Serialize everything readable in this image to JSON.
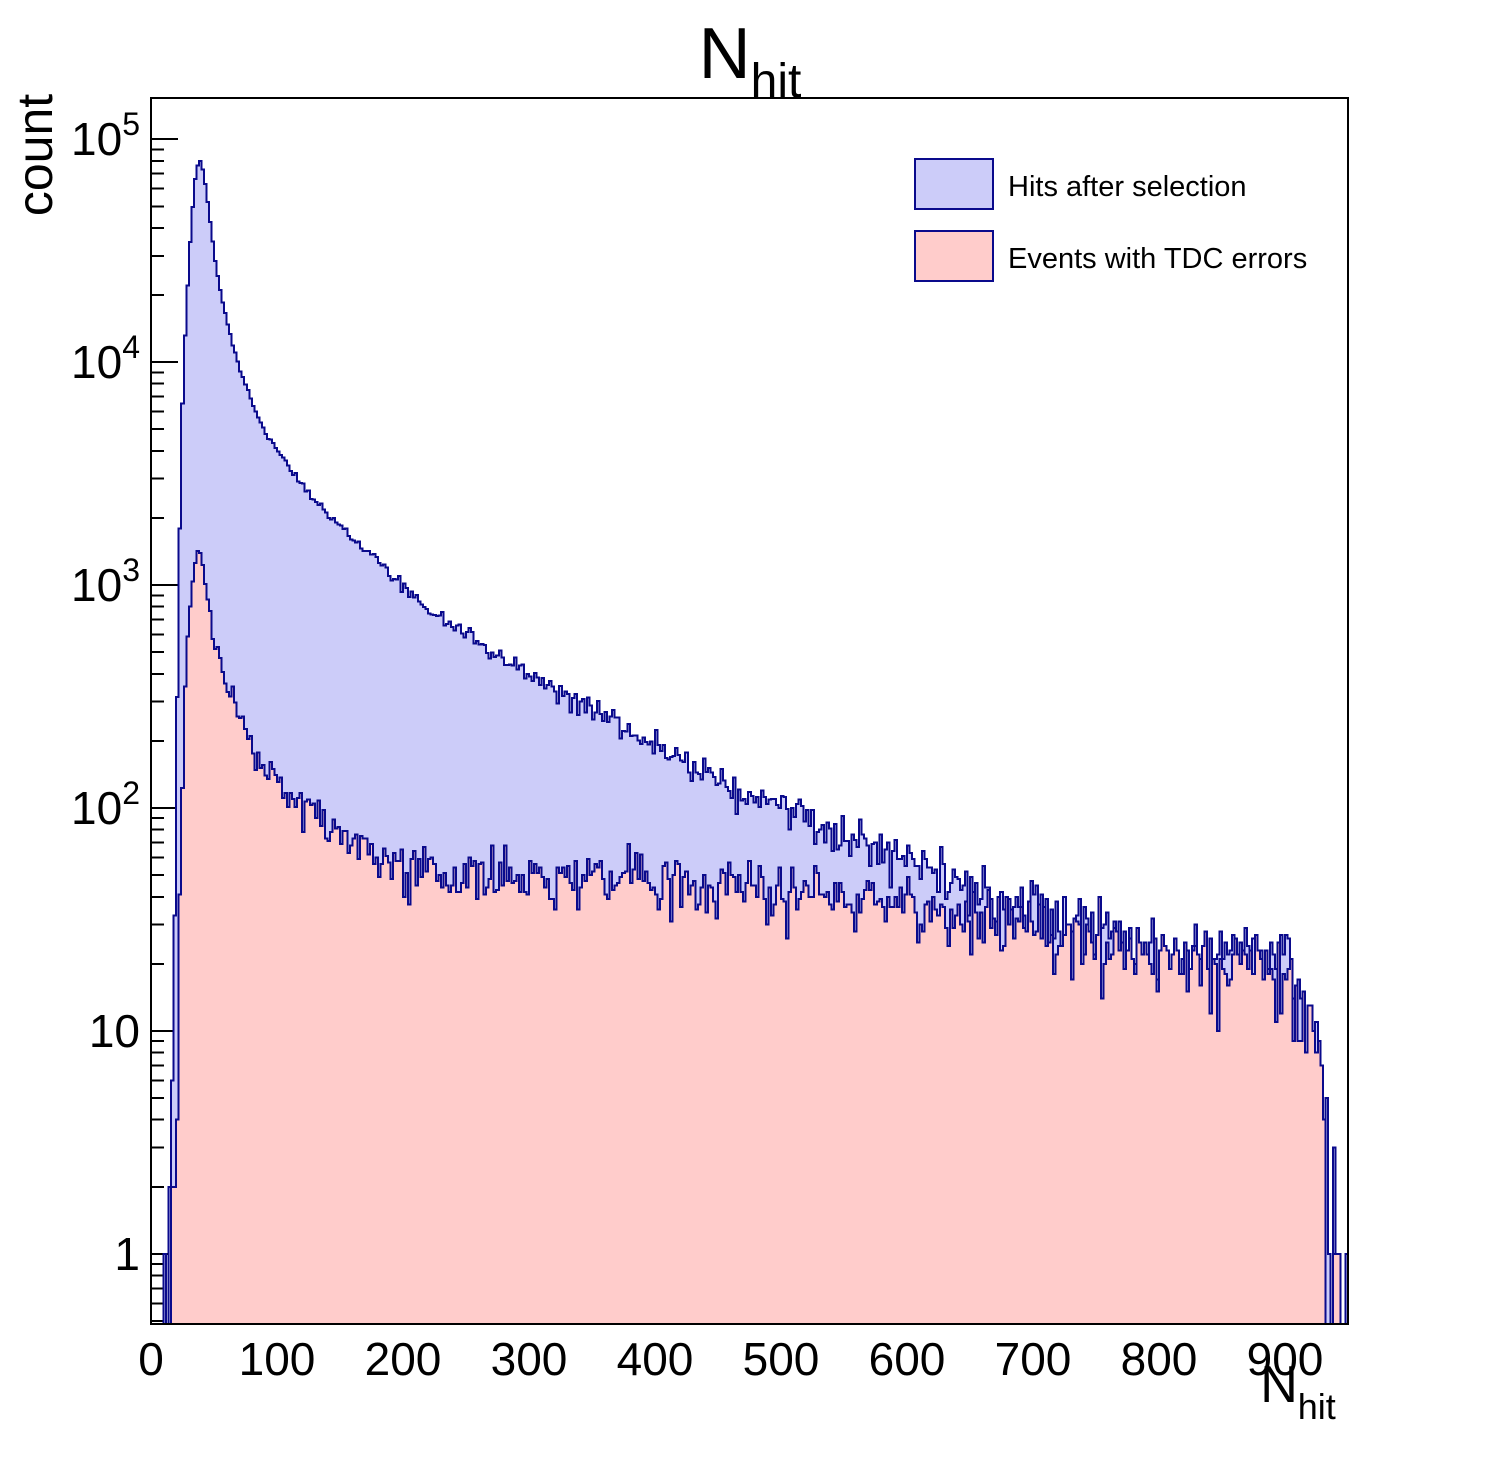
{
  "chart_data": {
    "type": "histogram",
    "title": {
      "main": "N",
      "sub": "hit"
    },
    "xlabel": {
      "main": "N",
      "sub": "hit"
    },
    "ylabel": "count",
    "x_range": [
      0,
      950
    ],
    "y_range": [
      0.485,
      153000
    ],
    "y_scale": "log",
    "bin_width": 2,
    "x_major_ticks": [
      0,
      100,
      200,
      300,
      400,
      500,
      600,
      700,
      800,
      900
    ],
    "x_minor_step": 20,
    "y_major_ticks": [
      1,
      10,
      100,
      1000,
      10000,
      100000
    ],
    "grid": false,
    "legend_position": "top-right",
    "frame_color": "#000000",
    "noise_seed": 12,
    "series": [
      {
        "name": "Hits after selection",
        "fill": "#ccccf9",
        "line": "#0a0a8c",
        "anchors": [
          [
            4,
            0.08
          ],
          [
            10,
            0.15
          ],
          [
            13,
            0.4
          ],
          [
            15,
            1.2
          ],
          [
            17,
            6
          ],
          [
            19,
            40
          ],
          [
            21,
            300
          ],
          [
            23,
            1800
          ],
          [
            25,
            6500
          ],
          [
            27,
            13000
          ],
          [
            29,
            22000
          ],
          [
            31,
            35000
          ],
          [
            33,
            50000
          ],
          [
            35,
            66000
          ],
          [
            37,
            77000
          ],
          [
            39,
            79500
          ],
          [
            41,
            73000
          ],
          [
            43,
            63000
          ],
          [
            45,
            52000
          ],
          [
            48,
            38000
          ],
          [
            51,
            28500
          ],
          [
            54,
            22500
          ],
          [
            58,
            17500
          ],
          [
            62,
            14000
          ],
          [
            66,
            11500
          ],
          [
            70,
            9600
          ],
          [
            75,
            7900
          ],
          [
            80,
            6600
          ],
          [
            85,
            5700
          ],
          [
            90,
            5000
          ],
          [
            95,
            4450
          ],
          [
            100,
            4000
          ],
          [
            108,
            3450
          ],
          [
            116,
            3000
          ],
          [
            124,
            2650
          ],
          [
            132,
            2350
          ],
          [
            141,
            2080
          ],
          [
            150,
            1850
          ],
          [
            160,
            1640
          ],
          [
            170,
            1450
          ],
          [
            180,
            1280
          ],
          [
            190,
            1120
          ],
          [
            200,
            980
          ],
          [
            212,
            860
          ],
          [
            224,
            760
          ],
          [
            236,
            680
          ],
          [
            248,
            610
          ],
          [
            260,
            550
          ],
          [
            275,
            485
          ],
          [
            290,
            430
          ],
          [
            305,
            385
          ],
          [
            320,
            345
          ],
          [
            336,
            305
          ],
          [
            352,
            270
          ],
          [
            368,
            240
          ],
          [
            384,
            215
          ],
          [
            400,
            193
          ],
          [
            416,
            172
          ],
          [
            432,
            154
          ],
          [
            448,
            139
          ],
          [
            464,
            126
          ],
          [
            480,
            112
          ],
          [
            495,
            103
          ],
          [
            510,
            95
          ],
          [
            525,
            88
          ],
          [
            540,
            81
          ],
          [
            555,
            74
          ],
          [
            570,
            69
          ],
          [
            585,
            64
          ],
          [
            600,
            59
          ],
          [
            615,
            55
          ],
          [
            630,
            51
          ],
          [
            645,
            47
          ],
          [
            660,
            44
          ],
          [
            675,
            41
          ],
          [
            690,
            38
          ],
          [
            705,
            35
          ],
          [
            720,
            33
          ],
          [
            735,
            30.5
          ],
          [
            750,
            28.5
          ],
          [
            765,
            26.5
          ],
          [
            780,
            24.5
          ],
          [
            795,
            23
          ],
          [
            810,
            22
          ],
          [
            825,
            21
          ],
          [
            840,
            20.5
          ],
          [
            855,
            21
          ],
          [
            870,
            22
          ],
          [
            885,
            21
          ],
          [
            895,
            19.5
          ],
          [
            905,
            17
          ],
          [
            912,
            14.5
          ],
          [
            918,
            12
          ],
          [
            923,
            9.5
          ],
          [
            927,
            7.5
          ],
          [
            930,
            5
          ],
          [
            933,
            2.5
          ],
          [
            936,
            1.0
          ],
          [
            940,
            0.7
          ],
          [
            943,
            1.1
          ],
          [
            946,
            0.5
          ],
          [
            950,
            0.2
          ]
        ]
      },
      {
        "name": "Events with TDC errors",
        "fill": "#ffcccb",
        "line": "#0a0a8c",
        "anchors": [
          [
            15,
            0.08
          ],
          [
            18,
            0.4
          ],
          [
            20,
            2
          ],
          [
            22,
            15
          ],
          [
            24,
            90
          ],
          [
            26,
            260
          ],
          [
            28,
            480
          ],
          [
            30,
            720
          ],
          [
            32,
            950
          ],
          [
            34,
            1180
          ],
          [
            36,
            1380
          ],
          [
            38,
            1440
          ],
          [
            40,
            1330
          ],
          [
            42,
            1140
          ],
          [
            45,
            880
          ],
          [
            48,
            690
          ],
          [
            51,
            560
          ],
          [
            54,
            470
          ],
          [
            58,
            390
          ],
          [
            62,
            330
          ],
          [
            66,
            288
          ],
          [
            70,
            254
          ],
          [
            75,
            220
          ],
          [
            80,
            194
          ],
          [
            85,
            174
          ],
          [
            90,
            157
          ],
          [
            95,
            143
          ],
          [
            100,
            132
          ],
          [
            108,
            117
          ],
          [
            116,
            106
          ],
          [
            124,
            97
          ],
          [
            132,
            90
          ],
          [
            141,
            84
          ],
          [
            150,
            78
          ],
          [
            160,
            72
          ],
          [
            170,
            67
          ],
          [
            180,
            63
          ],
          [
            190,
            60
          ],
          [
            200,
            57
          ],
          [
            212,
            54.5
          ],
          [
            224,
            52.5
          ],
          [
            236,
            51
          ],
          [
            248,
            50
          ],
          [
            260,
            49
          ],
          [
            275,
            48.5
          ],
          [
            290,
            48
          ],
          [
            305,
            47.5
          ],
          [
            320,
            47.5
          ],
          [
            336,
            47.5
          ],
          [
            352,
            47.5
          ],
          [
            368,
            48
          ],
          [
            384,
            48
          ],
          [
            400,
            48
          ],
          [
            416,
            47.5
          ],
          [
            432,
            47
          ],
          [
            448,
            46.5
          ],
          [
            464,
            46
          ],
          [
            480,
            45
          ],
          [
            495,
            44
          ],
          [
            510,
            43
          ],
          [
            525,
            42
          ],
          [
            540,
            41
          ],
          [
            555,
            40
          ],
          [
            570,
            39
          ],
          [
            585,
            38
          ],
          [
            600,
            36.5
          ],
          [
            615,
            35.5
          ],
          [
            630,
            34
          ],
          [
            645,
            33
          ],
          [
            660,
            31.5
          ],
          [
            675,
            30.5
          ],
          [
            690,
            29.5
          ],
          [
            705,
            28.5
          ],
          [
            720,
            27.5
          ],
          [
            735,
            26.5
          ],
          [
            750,
            25.5
          ],
          [
            765,
            24.5
          ],
          [
            780,
            23.5
          ],
          [
            795,
            22.5
          ],
          [
            810,
            21.8
          ],
          [
            825,
            21
          ],
          [
            840,
            20.3
          ],
          [
            855,
            20.3
          ],
          [
            870,
            21
          ],
          [
            885,
            20.3
          ],
          [
            895,
            18.5
          ],
          [
            905,
            16.5
          ],
          [
            912,
            14
          ],
          [
            918,
            11.5
          ],
          [
            923,
            9
          ],
          [
            927,
            7
          ],
          [
            930,
            4.5
          ],
          [
            933,
            2.2
          ],
          [
            936,
            0.9
          ],
          [
            940,
            0.6
          ],
          [
            943,
            0.9
          ],
          [
            946,
            0.4
          ],
          [
            950,
            0.15
          ]
        ]
      }
    ]
  }
}
